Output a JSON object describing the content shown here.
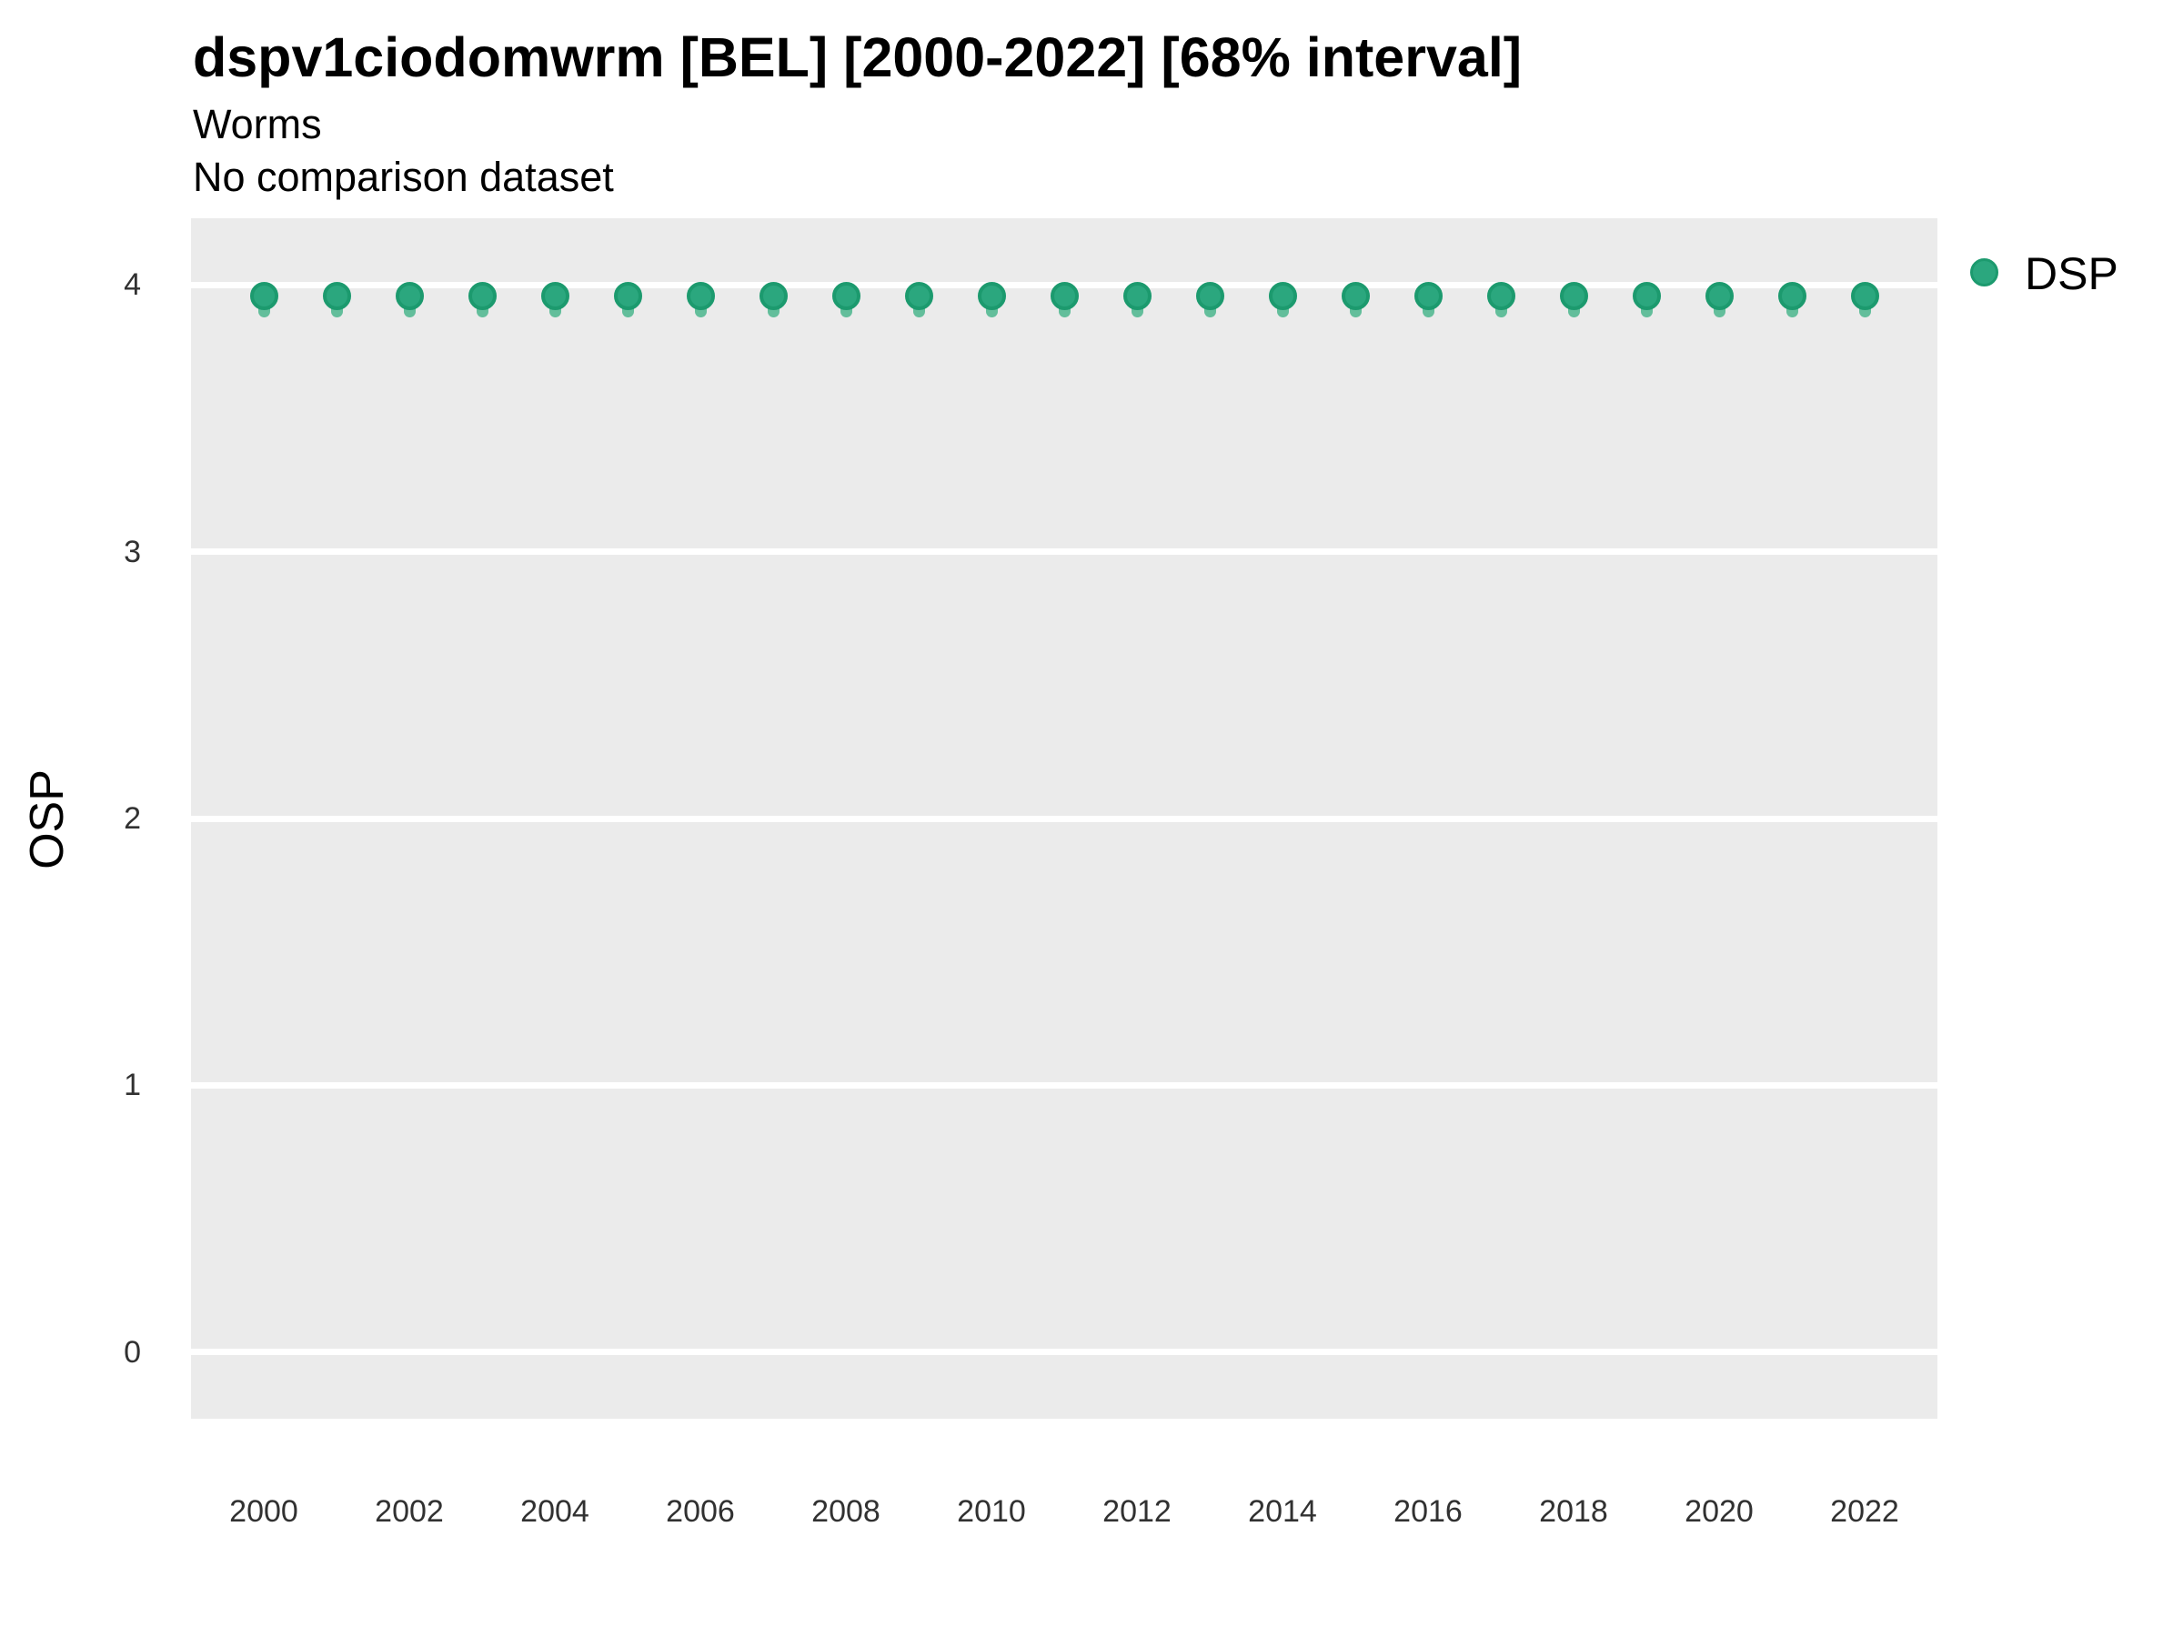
{
  "header": {
    "title": "dspv1ciodomwrm [BEL] [2000-2022] [68% interval]",
    "subtitle": "Worms",
    "note": "No comparison dataset"
  },
  "colors": {
    "panel_background": "#EBEBEB",
    "gridline": "#FFFFFF",
    "point_fill": "#2BA77E",
    "point_stroke": "#1C9A6E",
    "interval": "#63BE9B",
    "title_text": "#000000",
    "tick_text": "#313131"
  },
  "legend": {
    "items": [
      {
        "label": "DSP",
        "color": "#2BA77E",
        "stroke": "#1C9A6E",
        "shape": "circle"
      }
    ],
    "position": "right-top"
  },
  "y_axis": {
    "label": "OSP",
    "ticks": [
      0,
      1,
      2,
      3,
      4
    ]
  },
  "x_axis": {
    "label": "",
    "ticks": [
      2000,
      2002,
      2004,
      2006,
      2008,
      2010,
      2012,
      2014,
      2016,
      2018,
      2020,
      2022
    ]
  },
  "chart_data": {
    "type": "scatter",
    "title": "dspv1ciodomwrm [BEL] [2000-2022] [68% interval]",
    "subtitle": "Worms",
    "annotation": "No comparison dataset",
    "xlabel": "",
    "ylabel": "OSP",
    "xlim": [
      1999,
      2023
    ],
    "ylim": [
      -0.25,
      4.25
    ],
    "x_ticks": [
      2000,
      2002,
      2004,
      2006,
      2008,
      2010,
      2012,
      2014,
      2016,
      2018,
      2020,
      2022
    ],
    "y_ticks": [
      0,
      1,
      2,
      3,
      4
    ],
    "grid": "horizontal-major-only",
    "legend_position": "right-top",
    "x": [
      2000,
      2001,
      2002,
      2003,
      2004,
      2005,
      2006,
      2007,
      2008,
      2009,
      2010,
      2011,
      2012,
      2013,
      2014,
      2015,
      2016,
      2017,
      2018,
      2019,
      2020,
      2021,
      2022
    ],
    "series": [
      {
        "name": "DSP",
        "values": [
          3.96,
          3.96,
          3.96,
          3.96,
          3.96,
          3.96,
          3.96,
          3.96,
          3.96,
          3.96,
          3.96,
          3.96,
          3.96,
          3.96,
          3.96,
          3.96,
          3.96,
          3.96,
          3.96,
          3.96,
          3.96,
          3.96,
          3.96
        ],
        "interval_low": [
          3.88,
          3.88,
          3.88,
          3.88,
          3.88,
          3.88,
          3.88,
          3.88,
          3.88,
          3.88,
          3.88,
          3.88,
          3.88,
          3.88,
          3.88,
          3.88,
          3.88,
          3.88,
          3.88,
          3.88,
          3.88,
          3.88,
          3.88
        ],
        "interval_high": [
          4.0,
          4.0,
          4.0,
          4.0,
          4.0,
          4.0,
          4.0,
          4.0,
          4.0,
          4.0,
          4.0,
          4.0,
          4.0,
          4.0,
          4.0,
          4.0,
          4.0,
          4.0,
          4.0,
          4.0,
          4.0,
          4.0,
          4.0
        ]
      }
    ]
  }
}
